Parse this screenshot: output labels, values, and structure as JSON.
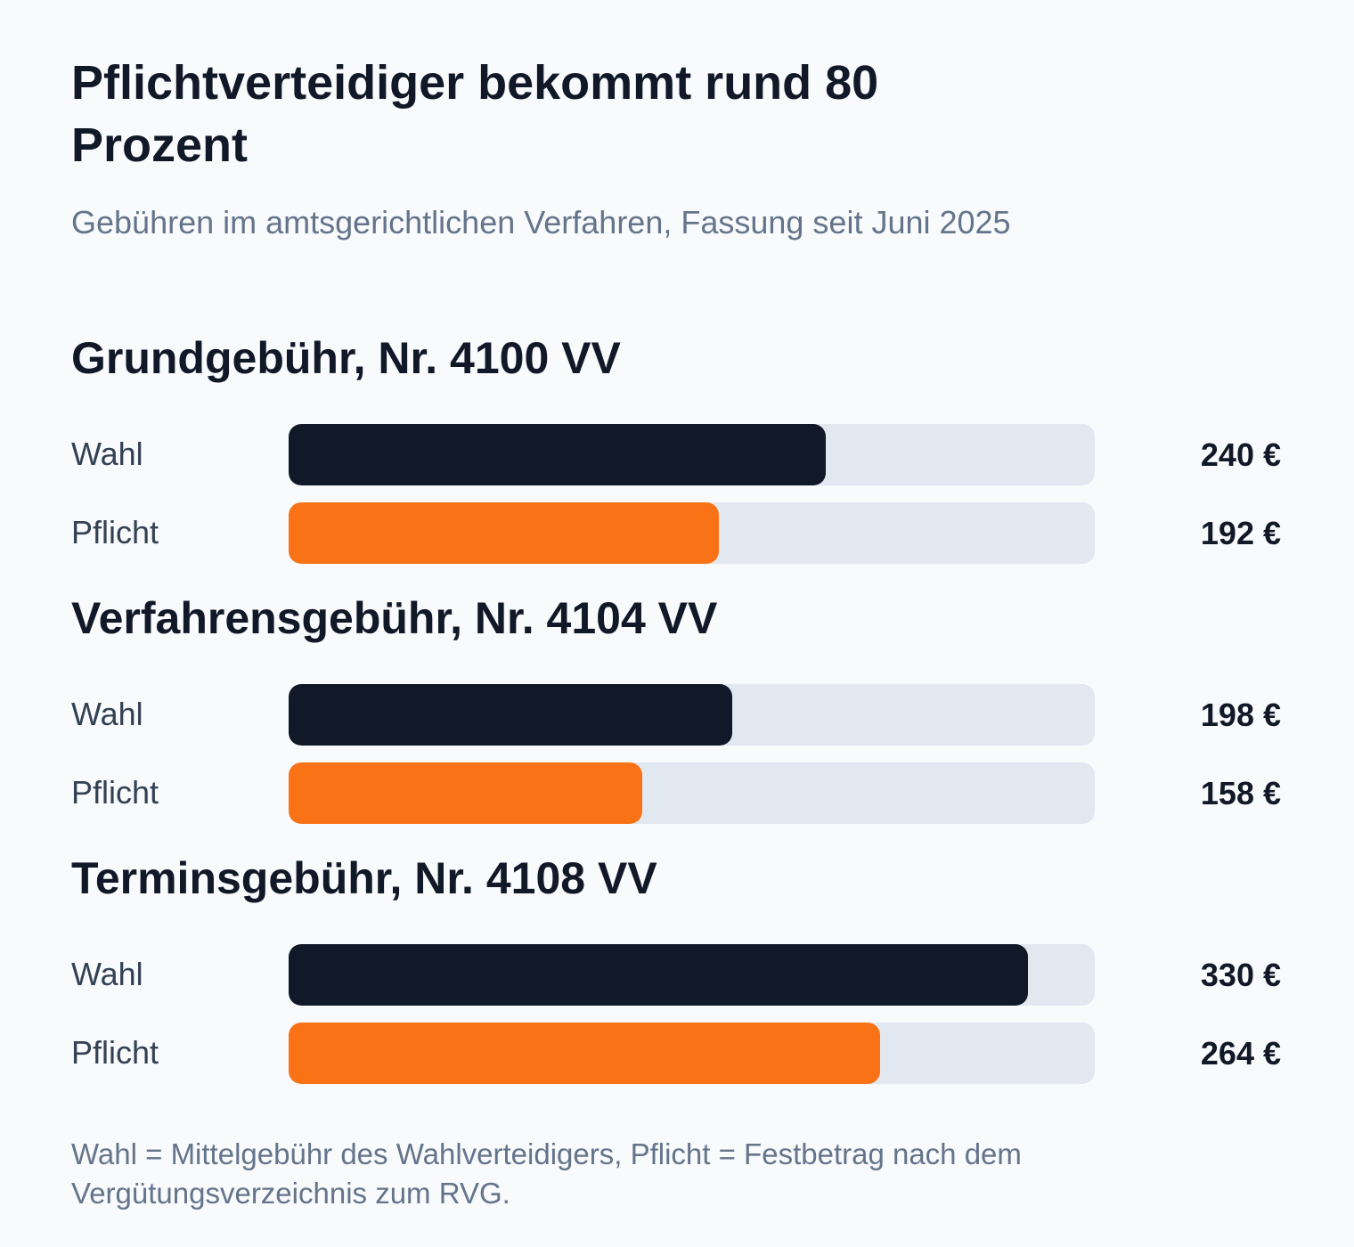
{
  "title": "Pflichtverteidiger bekommt rund 80 Prozent",
  "subtitle": "Gebühren im amtsgerichtlichen Verfahren, Fassung seit Juni 2025",
  "footnote": "Wahl = Mittelgebühr des Wahlverteidigers, Pflicht = Festbetrag nach dem Vergütungsverzeichnis zum RVG.",
  "colors": {
    "wahl": "#111827",
    "pflicht": "#f97316",
    "track": "#e2e8f0",
    "background": "#f8fafc"
  },
  "chart_data": {
    "type": "bar",
    "orientation": "horizontal",
    "unit": "€",
    "xlim": [
      0,
      360
    ],
    "groups": [
      {
        "title": "Grundgebühr, Nr. 4100 VV",
        "rows": [
          {
            "label": "Wahl",
            "value": 240,
            "value_label": "240 €",
            "series": "wahl"
          },
          {
            "label": "Pflicht",
            "value": 192,
            "value_label": "192 €",
            "series": "pflicht"
          }
        ]
      },
      {
        "title": "Verfahrensgebühr, Nr. 4104 VV",
        "rows": [
          {
            "label": "Wahl",
            "value": 198,
            "value_label": "198 €",
            "series": "wahl"
          },
          {
            "label": "Pflicht",
            "value": 158,
            "value_label": "158 €",
            "series": "pflicht"
          }
        ]
      },
      {
        "title": "Terminsgebühr, Nr. 4108 VV",
        "rows": [
          {
            "label": "Wahl",
            "value": 330,
            "value_label": "330 €",
            "series": "wahl"
          },
          {
            "label": "Pflicht",
            "value": 264,
            "value_label": "264 €",
            "series": "pflicht"
          }
        ]
      }
    ]
  }
}
